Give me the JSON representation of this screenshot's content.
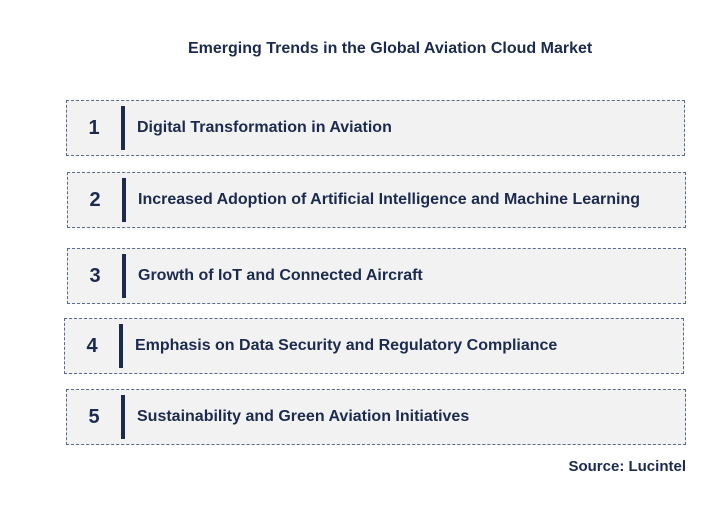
{
  "title": "Emerging Trends in the Global Aviation Cloud Market",
  "trends": [
    {
      "number": "1",
      "label": "Digital Transformation in Aviation"
    },
    {
      "number": "2",
      "label": "Increased Adoption of Artificial  Intelligence and Machine Learning"
    },
    {
      "number": "3",
      "label": "Growth of IoT and Connected Aircraft"
    },
    {
      "number": "4",
      "label": "Emphasis on Data Security and Regulatory Compliance"
    },
    {
      "number": "5",
      "label": "Sustainability and Green Aviation Initiatives"
    }
  ],
  "source": "Source: Lucintel",
  "colors": {
    "text": "#1b2a4e",
    "box_fill": "#f2f2f2",
    "box_border": "#5a6a88"
  }
}
